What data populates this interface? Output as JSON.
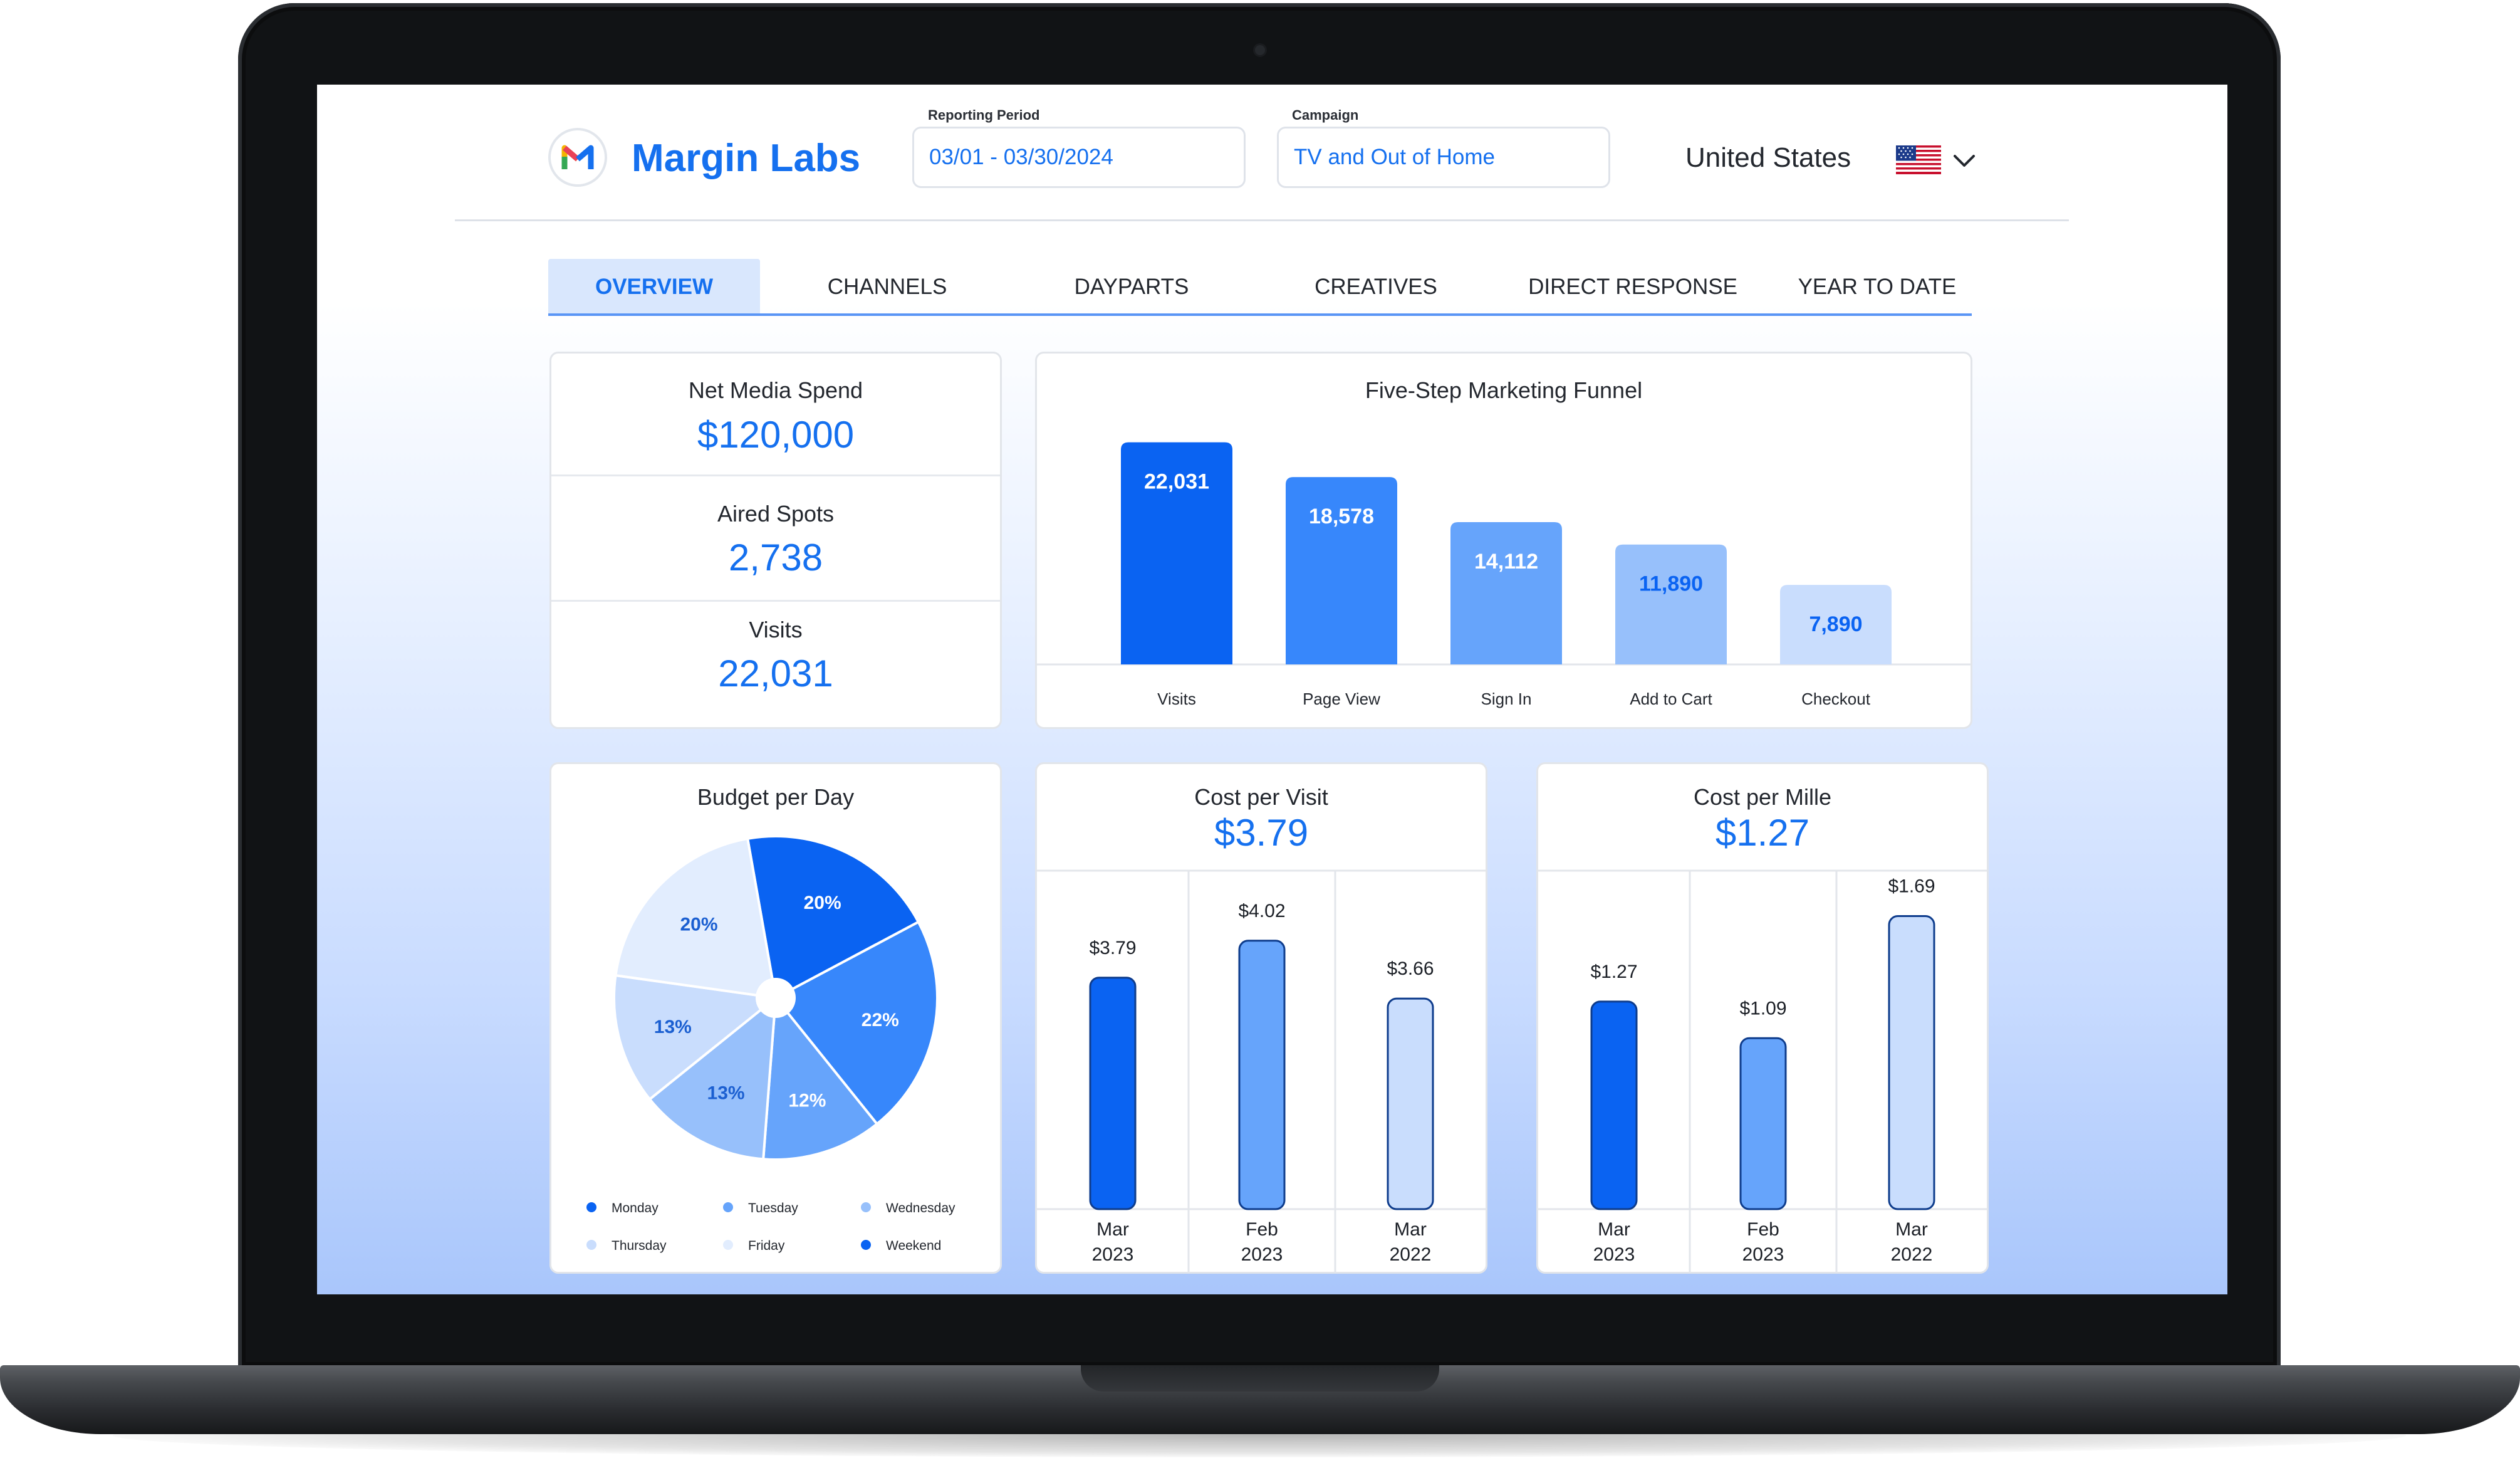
{
  "app": {
    "brand": "Margin Labs",
    "accent": "#1570ef"
  },
  "filters": {
    "reporting_period_label": "Reporting Period",
    "reporting_period_value": "03/01 - 03/30/2024",
    "campaign_label": "Campaign",
    "campaign_value": "TV and Out of Home",
    "country": "United States",
    "country_flag_icon": "us-flag-icon",
    "country_dropdown_icon": "chevron-down-icon"
  },
  "tabs": [
    {
      "label": "OVERVIEW",
      "active": true
    },
    {
      "label": "CHANNELS",
      "active": false
    },
    {
      "label": "DAYPARTS",
      "active": false
    },
    {
      "label": "CREATIVES",
      "active": false
    },
    {
      "label": "DIRECT RESPONSE",
      "active": false
    },
    {
      "label": "YEAR TO DATE",
      "active": false
    }
  ],
  "kpis": [
    {
      "label": "Net Media Spend",
      "value": "$120,000"
    },
    {
      "label": "Aired Spots",
      "value": "2,738"
    },
    {
      "label": "Visits",
      "value": "22,031"
    }
  ],
  "colors": {
    "blue_1": "#0a63f2",
    "blue_2": "#3787fb",
    "blue_3": "#66a4fb",
    "blue_4": "#97c0fb",
    "blue_5": "#c9ddfd",
    "blue_6": "#e2edfe"
  },
  "chart_data": [
    {
      "type": "bar",
      "title": "Five-Step Marketing Funnel",
      "categories": [
        "Visits",
        "Page View",
        "Sign In",
        "Add to Cart",
        "Checkout"
      ],
      "values": [
        22031,
        18578,
        14112,
        11890,
        7890
      ],
      "data_labels": [
        "22,031",
        "18,578",
        "14,112",
        "11,890",
        "7,890"
      ],
      "ylim": [
        0,
        23000
      ]
    },
    {
      "type": "pie",
      "title": "Budget per Day",
      "slices": [
        {
          "name": "Weekend",
          "value": 20,
          "label": "20%"
        },
        {
          "name": "Monday",
          "value": 22,
          "label": "22%"
        },
        {
          "name": "Tuesday",
          "value": 12,
          "label": "12%"
        },
        {
          "name": "Wednesday",
          "value": 13,
          "label": "13%"
        },
        {
          "name": "Thursday",
          "value": 13,
          "label": "13%"
        },
        {
          "name": "Friday",
          "value": 20,
          "label": "20%"
        }
      ],
      "legend": [
        "Monday",
        "Tuesday",
        "Wednesday",
        "Thursday",
        "Friday",
        "Weekend"
      ],
      "legend_position": "bottom"
    },
    {
      "type": "bar",
      "title": "Cost per Visit",
      "headline": "$3.79",
      "categories": [
        "Mar\n2023",
        "Feb\n2023",
        "Mar\n2022"
      ],
      "values": [
        3.79,
        4.02,
        3.66
      ],
      "data_labels": [
        "$3.79",
        "$4.02",
        "$3.66"
      ],
      "ylim": [
        2.35,
        4.3
      ]
    },
    {
      "type": "bar",
      "title": "Cost per Mille",
      "headline": "$1.27",
      "categories": [
        "Mar\n2023",
        "Feb\n2023",
        "Mar\n2022"
      ],
      "values": [
        1.27,
        1.09,
        1.69
      ],
      "data_labels": [
        "$1.27",
        "$1.09",
        "$1.69"
      ],
      "ylim": [
        0.25,
        1.79
      ]
    }
  ]
}
